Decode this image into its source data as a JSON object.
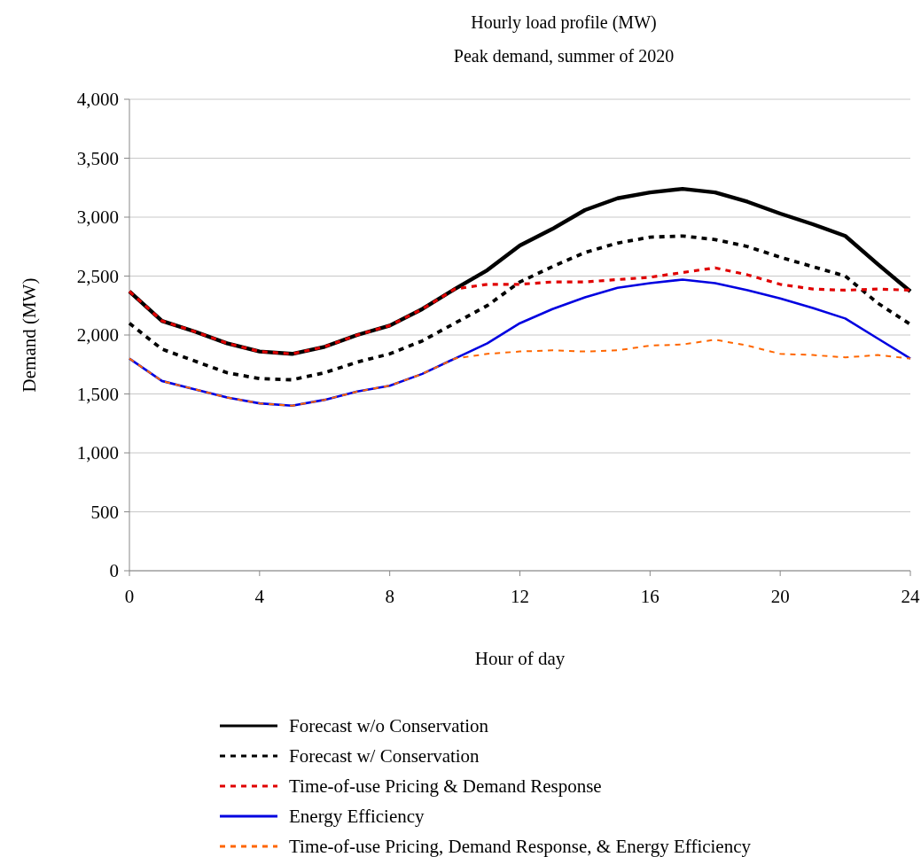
{
  "chart_data": {
    "type": "line",
    "title": "Hourly load profile (MW)",
    "subtitle": "Peak demand, summer of 2020",
    "xlabel": "Hour of day",
    "ylabel": "Demand (MW)",
    "x": [
      0,
      1,
      2,
      3,
      4,
      5,
      6,
      7,
      8,
      9,
      10,
      11,
      12,
      13,
      14,
      15,
      16,
      17,
      18,
      19,
      20,
      21,
      22,
      23,
      24
    ],
    "xlim": [
      0,
      24
    ],
    "xticks": [
      0,
      4,
      8,
      12,
      16,
      20,
      24
    ],
    "ylim": [
      0,
      4000
    ],
    "yticks": [
      0,
      500,
      {
        "value": 1000,
        "label": "1,000"
      },
      {
        "value": 1500,
        "label": "1,500"
      },
      {
        "value": 2000,
        "label": "2,000"
      },
      {
        "value": 2500,
        "label": "2,500"
      },
      {
        "value": 3000,
        "label": "3,000"
      },
      {
        "value": 3500,
        "label": "3,500"
      },
      {
        "value": 4000,
        "label": "4,000"
      }
    ],
    "grid": "y",
    "legend": "bottom",
    "marker": "none",
    "series": [
      {
        "name": "Forecast w/o Conservation",
        "color": "#000000",
        "line_style": "solid",
        "values": [
          2370,
          2120,
          2030,
          1930,
          1860,
          1840,
          1900,
          2000,
          2080,
          2220,
          2390,
          2550,
          2760,
          2900,
          3060,
          3160,
          3210,
          3240,
          3210,
          3130,
          3030,
          2940,
          2840,
          2600,
          2370
        ]
      },
      {
        "name": "Forecast w/ Conservation",
        "color": "#000000",
        "line_style": "dashed",
        "values": [
          2100,
          1880,
          1780,
          1680,
          1630,
          1620,
          1680,
          1770,
          1840,
          1950,
          2100,
          2250,
          2450,
          2580,
          2700,
          2780,
          2830,
          2840,
          2810,
          2750,
          2660,
          2580,
          2500,
          2270,
          2090
        ]
      },
      {
        "name": "Time-of-use Pricing & Demand Response",
        "color": "#e00000",
        "line_style": "dashed",
        "values": [
          2370,
          2120,
          2030,
          1930,
          1860,
          1840,
          1900,
          2000,
          2080,
          2220,
          2390,
          2430,
          2430,
          2450,
          2450,
          2470,
          2490,
          2530,
          2570,
          2510,
          2430,
          2390,
          2380,
          2390,
          2380
        ]
      },
      {
        "name": "Energy Efficiency",
        "color": "#0000e0",
        "line_style": "solid",
        "values": [
          1800,
          1610,
          1540,
          1470,
          1420,
          1400,
          1450,
          1520,
          1570,
          1670,
          1800,
          1930,
          2100,
          2220,
          2320,
          2400,
          2440,
          2470,
          2440,
          2380,
          2310,
          2230,
          2140,
          1970,
          1800
        ]
      },
      {
        "name": "Time-of-use Pricing, Demand Response, & Energy Efficiency",
        "color": "#ff6600",
        "line_style": "dashed",
        "values": [
          1800,
          1610,
          1540,
          1470,
          1420,
          1400,
          1450,
          1520,
          1570,
          1670,
          1800,
          1840,
          1860,
          1870,
          1860,
          1870,
          1910,
          1920,
          1960,
          1910,
          1840,
          1830,
          1810,
          1830,
          1800
        ]
      }
    ]
  }
}
